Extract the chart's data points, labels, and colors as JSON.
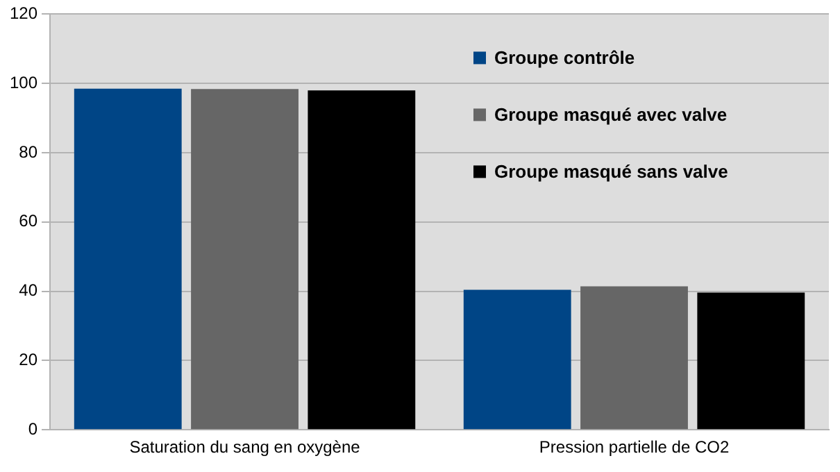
{
  "chart_data": {
    "type": "bar",
    "categories": [
      "Saturation du sang en oxygène",
      "Pression partielle de CO2"
    ],
    "series": [
      {
        "name": "Groupe contrôle",
        "color": "#004586",
        "values": [
          98.5,
          40.4
        ]
      },
      {
        "name": "Groupe masqué avec valve",
        "color": "#666666",
        "values": [
          98.4,
          41.4
        ]
      },
      {
        "name": "Groupe masqué sans valve",
        "color": "#000000",
        "values": [
          98.0,
          39.6
        ]
      }
    ],
    "ylim": [
      0,
      120
    ],
    "yticks": [
      0,
      20,
      40,
      60,
      80,
      100,
      120
    ],
    "grid": "y",
    "legend": "top right"
  }
}
